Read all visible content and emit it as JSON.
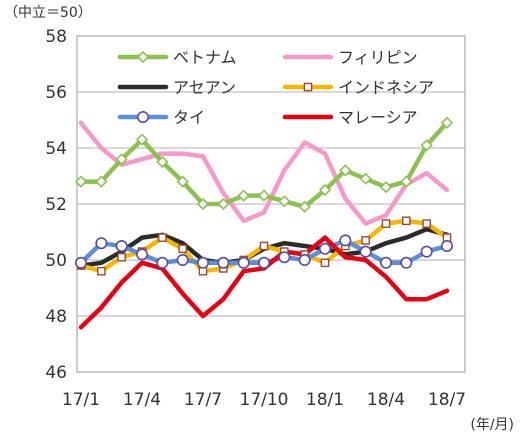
{
  "chart_data": {
    "type": "line",
    "y_unit_label": "（中立＝50）",
    "x_unit_label": "(年/月)",
    "ylim": [
      46,
      58
    ],
    "yticks": [
      46,
      48,
      50,
      52,
      54,
      56,
      58
    ],
    "grid": true,
    "legend_placement": "top",
    "x_tick_labels": [
      "17/1",
      "17/4",
      "17/7",
      "17/10",
      "18/1",
      "18/4",
      "18/7"
    ],
    "x_tick_indices": [
      0,
      3,
      6,
      9,
      12,
      15,
      18
    ],
    "x_count": 19,
    "series": [
      {
        "name": "ベトナム",
        "color": "#8cc152",
        "marker": "diamond",
        "values": [
          52.8,
          52.8,
          53.6,
          54.3,
          53.5,
          52.8,
          52.0,
          52.0,
          52.3,
          52.3,
          52.1,
          51.9,
          52.5,
          53.2,
          52.9,
          52.6,
          52.8,
          54.1,
          54.9
        ]
      },
      {
        "name": "フィリピン",
        "color": "#f59ac8",
        "marker": "none",
        "values": [
          54.9,
          54.0,
          53.4,
          53.6,
          53.8,
          53.8,
          53.7,
          52.4,
          51.4,
          51.7,
          53.2,
          54.2,
          53.8,
          52.2,
          51.3,
          51.6,
          52.7,
          53.1,
          52.5
        ]
      },
      {
        "name": "アセアン",
        "color": "#2b2b2b",
        "marker": "none",
        "values": [
          49.8,
          49.9,
          50.3,
          50.8,
          50.9,
          50.6,
          50.0,
          49.9,
          50.0,
          50.4,
          50.6,
          50.5,
          50.4,
          50.2,
          50.3,
          50.6,
          50.8,
          51.1,
          50.9
        ]
      },
      {
        "name": "インドネシア",
        "color": "#f5b800",
        "marker": "square",
        "values": [
          49.8,
          49.6,
          50.1,
          50.3,
          50.8,
          50.4,
          49.6,
          49.7,
          50.0,
          50.5,
          50.3,
          50.2,
          49.9,
          50.5,
          50.7,
          51.3,
          51.4,
          51.3,
          50.8
        ]
      },
      {
        "name": "タイ",
        "color": "#5b8fd6",
        "marker": "circle",
        "values": [
          49.9,
          50.6,
          50.5,
          50.2,
          49.9,
          50.0,
          49.9,
          49.9,
          49.9,
          49.9,
          50.1,
          50.0,
          50.4,
          50.7,
          50.3,
          49.9,
          49.9,
          50.3,
          50.5
        ]
      },
      {
        "name": "マレーシア",
        "color": "#e60012",
        "marker": "none",
        "values": [
          47.6,
          48.3,
          49.2,
          49.9,
          49.7,
          48.8,
          48.0,
          48.6,
          49.6,
          49.7,
          50.3,
          50.2,
          50.8,
          50.1,
          50.0,
          49.4,
          48.6,
          48.6,
          48.9
        ]
      }
    ]
  }
}
